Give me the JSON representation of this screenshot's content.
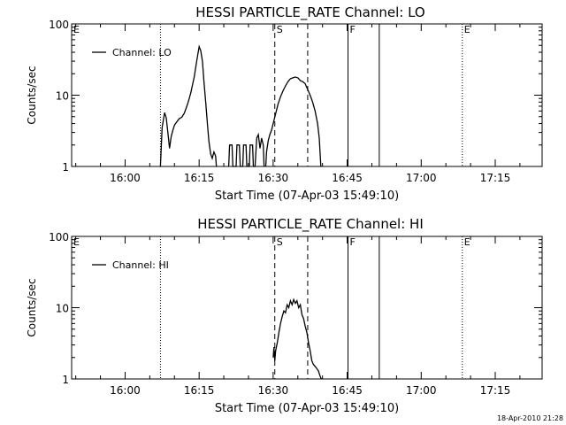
{
  "timestamp": "18-Apr-2010 21:28",
  "chart_data": [
    {
      "type": "line",
      "title": "HESSI PARTICLE_RATE Channel: LO",
      "xlabel": "Start Time (07-Apr-03 15:49:10)",
      "ylabel": "Counts/sec",
      "yscale": "log",
      "ylim": [
        1,
        100
      ],
      "xlim": [
        "15:49:10",
        "17:24:30"
      ],
      "yticks": [
        "1",
        "10",
        "100"
      ],
      "xticks": [
        "16:00",
        "16:15",
        "16:30",
        "16:45",
        "17:00",
        "17:15"
      ],
      "legend_position": "top-left",
      "markers": [
        {
          "label": "E",
          "time": "15:49:10",
          "style": "dotted"
        },
        {
          "label": "",
          "time": "16:07:10",
          "style": "dotted"
        },
        {
          "label": "S",
          "time": "16:30:20",
          "style": "dashed"
        },
        {
          "label": "",
          "time": "16:37:00",
          "style": "dashed"
        },
        {
          "label": "F",
          "time": "16:45:10",
          "style": "solid"
        },
        {
          "label": "",
          "time": "16:51:30",
          "style": "solid"
        },
        {
          "label": "E",
          "time": "17:08:20",
          "style": "dotted"
        },
        {
          "label": "",
          "time": "17:24:30",
          "style": "dotted"
        }
      ],
      "series": [
        {
          "name": "Channel: LO",
          "segments": [
            {
              "x": [
                "16:07:10",
                "16:07:30",
                "16:08:00",
                "16:08:20",
                "16:08:40",
                "16:09:00",
                "16:09:20",
                "16:09:40",
                "16:10:00",
                "16:10:20",
                "16:10:40",
                "16:11:00",
                "16:11:30",
                "16:12:00",
                "16:12:20",
                "16:12:40",
                "16:13:00",
                "16:13:20",
                "16:13:40",
                "16:14:00",
                "16:14:20",
                "16:14:40",
                "16:15:00",
                "16:15:20",
                "16:15:40",
                "16:16:00",
                "16:16:20",
                "16:16:40",
                "16:17:00",
                "16:17:20",
                "16:17:40",
                "16:18:00",
                "16:18:20",
                "16:18:30"
              ],
              "y": [
                1.0,
                3.5,
                5.7,
                4.8,
                3.0,
                1.8,
                2.6,
                3.2,
                3.8,
                4.1,
                4.4,
                4.7,
                4.9,
                5.6,
                6.5,
                7.5,
                9.0,
                11.0,
                14.0,
                18.0,
                25.0,
                35.0,
                48.0,
                42.0,
                30.0,
                15.0,
                8.0,
                4.0,
                2.2,
                1.5,
                1.3,
                1.6,
                1.4,
                1.0
              ]
            },
            {
              "x": [
                "16:21:00",
                "16:21:10",
                "16:21:40",
                "16:21:50",
                "16:22:30",
                "16:22:40",
                "16:23:10",
                "16:23:20",
                "16:23:50",
                "16:24:00",
                "16:24:30",
                "16:24:40",
                "16:25:10",
                "16:25:20",
                "16:25:50",
                "16:26:00",
                "16:26:20",
                "16:26:40",
                "16:27:00",
                "16:27:20",
                "16:27:40",
                "16:28:00",
                "16:28:10"
              ],
              "y": [
                1.0,
                2.0,
                2.0,
                1.0,
                1.0,
                2.0,
                2.0,
                1.0,
                1.0,
                2.0,
                2.0,
                1.0,
                1.0,
                2.0,
                2.0,
                1.0,
                1.0,
                2.5,
                2.8,
                1.8,
                2.5,
                2.0,
                1.0
              ]
            },
            {
              "x": [
                "16:28:30",
                "16:28:40",
                "16:29:00",
                "16:29:20",
                "16:29:40",
                "16:30:00",
                "16:30:30",
                "16:31:00",
                "16:31:30",
                "16:32:00",
                "16:32:30",
                "16:33:00",
                "16:33:30",
                "16:34:00",
                "16:34:30",
                "16:35:00",
                "16:35:30",
                "16:36:00",
                "16:36:30",
                "16:37:00",
                "16:37:30",
                "16:38:00",
                "16:38:30",
                "16:39:00",
                "16:39:20",
                "16:39:40"
              ],
              "y": [
                1.0,
                1.6,
                2.3,
                2.8,
                3.2,
                4.0,
                5.5,
                7.5,
                9.5,
                11.5,
                13.5,
                15.5,
                17.0,
                17.5,
                18.0,
                17.5,
                16.0,
                15.5,
                14.5,
                12.0,
                10.0,
                8.0,
                6.0,
                4.0,
                2.5,
                1.0
              ]
            }
          ]
        }
      ]
    },
    {
      "type": "line",
      "title": "HESSI PARTICLE_RATE Channel: HI",
      "xlabel": "Start Time (07-Apr-03 15:49:10)",
      "ylabel": "Counts/sec",
      "yscale": "log",
      "ylim": [
        1,
        100
      ],
      "xlim": [
        "15:49:10",
        "17:24:30"
      ],
      "yticks": [
        "1",
        "10",
        "100"
      ],
      "xticks": [
        "16:00",
        "16:15",
        "16:30",
        "16:45",
        "17:00",
        "17:15"
      ],
      "legend_position": "top-left",
      "markers": [
        {
          "label": "E",
          "time": "15:49:10",
          "style": "dotted"
        },
        {
          "label": "",
          "time": "16:07:10",
          "style": "dotted"
        },
        {
          "label": "S",
          "time": "16:30:20",
          "style": "dashed"
        },
        {
          "label": "",
          "time": "16:37:00",
          "style": "dashed"
        },
        {
          "label": "F",
          "time": "16:45:10",
          "style": "solid"
        },
        {
          "label": "",
          "time": "16:51:30",
          "style": "solid"
        },
        {
          "label": "E",
          "time": "17:08:20",
          "style": "dotted"
        },
        {
          "label": "",
          "time": "17:24:30",
          "style": "dotted"
        }
      ],
      "series": [
        {
          "name": "Channel: HI",
          "segments": [
            {
              "x": [
                "16:30:00",
                "16:30:10",
                "16:30:20",
                "16:30:30",
                "16:30:50",
                "16:31:10",
                "16:31:30",
                "16:31:50",
                "16:32:10",
                "16:32:30",
                "16:32:50",
                "16:33:10",
                "16:33:30",
                "16:33:50",
                "16:34:10",
                "16:34:30",
                "16:34:50",
                "16:35:10",
                "16:35:30",
                "16:35:50",
                "16:36:10",
                "16:36:30",
                "16:36:50",
                "16:37:10",
                "16:37:30",
                "16:37:50",
                "16:38:10",
                "16:38:30",
                "16:38:50",
                "16:39:10",
                "16:39:30",
                "16:39:45"
              ],
              "y": [
                2.0,
                2.8,
                1.8,
                2.5,
                3.2,
                4.5,
                6.0,
                7.5,
                9.0,
                8.5,
                11.0,
                10.0,
                12.5,
                11.0,
                13.0,
                11.5,
                12.5,
                10.0,
                11.0,
                8.0,
                7.0,
                5.5,
                4.5,
                3.2,
                2.5,
                1.8,
                1.6,
                1.5,
                1.4,
                1.3,
                1.1,
                1.0
              ]
            }
          ]
        }
      ]
    }
  ]
}
